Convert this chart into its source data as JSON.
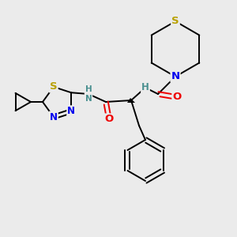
{
  "background_color": "#ebebeb",
  "bond_color": "#000000",
  "atom_colors": {
    "S": "#b8a000",
    "N": "#0000ee",
    "O": "#ee0000",
    "C": "#000000",
    "H": "#4a9090"
  },
  "figsize": [
    3.0,
    3.0
  ],
  "dpi": 100,
  "lw": 1.4,
  "fontsize": 8.5
}
